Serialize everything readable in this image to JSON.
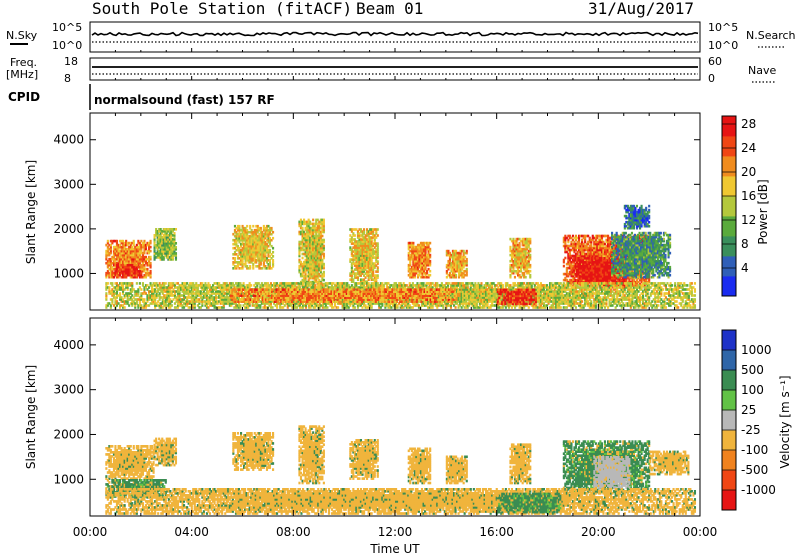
{
  "header": {
    "station": "South Pole Station (fitACF)",
    "beam": "Beam 01",
    "date": "31/Aug/2017"
  },
  "strip_panels": {
    "nsky": {
      "label": "N.Sky",
      "top_tick": "10^5",
      "bottom_tick": "10^0"
    },
    "nsearch": {
      "label": "N.Search",
      "top_tick": "10^5",
      "bottom_tick": "10^0"
    },
    "freq": {
      "label_line1": "Freq.",
      "label_line2": "[MHz]",
      "top_tick": "18",
      "bottom_tick": "8"
    },
    "nave": {
      "label": "Nave",
      "top_tick": "60",
      "bottom_tick": "0"
    },
    "cpid": {
      "label": "CPID",
      "program": "normalsound (fast) 157 RF"
    }
  },
  "chart_data": [
    {
      "type": "heatmap",
      "panel": "power",
      "ylabel": "Slant Range [km]",
      "ylim": [
        180,
        4600
      ],
      "yticks": [
        1000,
        2000,
        3000,
        4000
      ],
      "xlim": [
        "00:00",
        "24:00"
      ],
      "colorbar": {
        "label": "Power [dB]",
        "ticks": [
          "4",
          "8",
          "12",
          "16",
          "20",
          "24",
          "28"
        ],
        "range": [
          0,
          30
        ],
        "colors": [
          "#1a2cf0",
          "#2f5fb8",
          "#3a8f5c",
          "#5aaa3c",
          "#b4c83c",
          "#f0c832",
          "#f08c1e",
          "#f04614",
          "#e61414"
        ]
      },
      "regions": [
        {
          "t0": 0.6,
          "t1": 2.4,
          "r0": 900,
          "r1": 1750,
          "level": 22
        },
        {
          "t0": 0.9,
          "t1": 2.0,
          "r0": 900,
          "r1": 1200,
          "level": 27
        },
        {
          "t0": 2.5,
          "t1": 3.4,
          "r0": 1300,
          "r1": 2000,
          "level": 14
        },
        {
          "t0": 5.6,
          "t1": 7.2,
          "r0": 1100,
          "r1": 2050,
          "level": 18
        },
        {
          "t0": 8.2,
          "t1": 9.2,
          "r0": 700,
          "r1": 2200,
          "level": 17
        },
        {
          "t0": 10.2,
          "t1": 11.3,
          "r0": 800,
          "r1": 2000,
          "level": 18
        },
        {
          "t0": 12.5,
          "t1": 13.4,
          "r0": 900,
          "r1": 1700,
          "level": 22
        },
        {
          "t0": 14.0,
          "t1": 14.8,
          "r0": 900,
          "r1": 1500,
          "level": 20
        },
        {
          "t0": 16.5,
          "t1": 17.3,
          "r0": 900,
          "r1": 1800,
          "level": 19
        },
        {
          "t0": 18.6,
          "t1": 22.0,
          "r0": 700,
          "r1": 1850,
          "level": 24
        },
        {
          "t0": 19.0,
          "t1": 21.0,
          "r0": 650,
          "r1": 1350,
          "level": 29
        },
        {
          "t0": 20.5,
          "t1": 22.8,
          "r0": 900,
          "r1": 1900,
          "level": 9
        },
        {
          "t0": 21.0,
          "t1": 22.0,
          "r0": 2000,
          "r1": 2500,
          "level": 6
        },
        {
          "t0": 0.6,
          "t1": 23.8,
          "r0": 220,
          "r1": 800,
          "level": 16
        },
        {
          "t0": 5.5,
          "t1": 14.5,
          "r0": 350,
          "r1": 650,
          "level": 22
        },
        {
          "t0": 16.0,
          "t1": 17.5,
          "r0": 300,
          "r1": 650,
          "level": 27
        }
      ]
    },
    {
      "type": "heatmap",
      "panel": "velocity",
      "ylabel": "Slant Range [km]",
      "ylim": [
        180,
        4600
      ],
      "yticks": [
        1000,
        2000,
        3000,
        4000
      ],
      "xlabel": "Time UT",
      "xticks": [
        "00:00",
        "04:00",
        "08:00",
        "12:00",
        "16:00",
        "20:00",
        "00:00"
      ],
      "xlim": [
        "00:00",
        "24:00"
      ],
      "colorbar": {
        "label": "Velocity [m s⁻¹]",
        "ticks": [
          "1000",
          "500",
          "100",
          "25",
          "-25",
          "-100",
          "-500",
          "-1000"
        ],
        "colors": [
          "#1e32c8",
          "#2f66a8",
          "#3a8c52",
          "#62c246",
          "#b8b8b8",
          "#f0b43c",
          "#f0821e",
          "#f04614",
          "#e61414"
        ]
      },
      "regions": [
        {
          "t0": 0.6,
          "t1": 2.5,
          "r0": 1000,
          "r1": 1750,
          "level": -100
        },
        {
          "t0": 0.6,
          "t1": 3.0,
          "r0": 600,
          "r1": 1000,
          "level": 100
        },
        {
          "t0": 2.5,
          "t1": 3.4,
          "r0": 1300,
          "r1": 1900,
          "level": -100
        },
        {
          "t0": 5.6,
          "t1": 7.2,
          "r0": 1200,
          "r1": 2050,
          "level": -100
        },
        {
          "t0": 8.2,
          "t1": 9.2,
          "r0": 900,
          "r1": 2200,
          "level": -100
        },
        {
          "t0": 10.2,
          "t1": 11.3,
          "r0": 1000,
          "r1": 1900,
          "level": -100
        },
        {
          "t0": 12.5,
          "t1": 13.4,
          "r0": 900,
          "r1": 1700,
          "level": -100
        },
        {
          "t0": 14.0,
          "t1": 14.8,
          "r0": 900,
          "r1": 1500,
          "level": -100
        },
        {
          "t0": 16.5,
          "t1": 17.3,
          "r0": 900,
          "r1": 1800,
          "level": -100
        },
        {
          "t0": 18.6,
          "t1": 22.0,
          "r0": 700,
          "r1": 1850,
          "level": 100
        },
        {
          "t0": 19.8,
          "t1": 21.2,
          "r0": 800,
          "r1": 1500,
          "level": 25
        },
        {
          "t0": 22.0,
          "t1": 23.5,
          "r0": 1100,
          "r1": 1600,
          "level": -100
        },
        {
          "t0": 0.6,
          "t1": 23.8,
          "r0": 220,
          "r1": 800,
          "level": -100
        },
        {
          "t0": 16.0,
          "t1": 18.5,
          "r0": 250,
          "r1": 700,
          "level": 100
        }
      ]
    }
  ]
}
